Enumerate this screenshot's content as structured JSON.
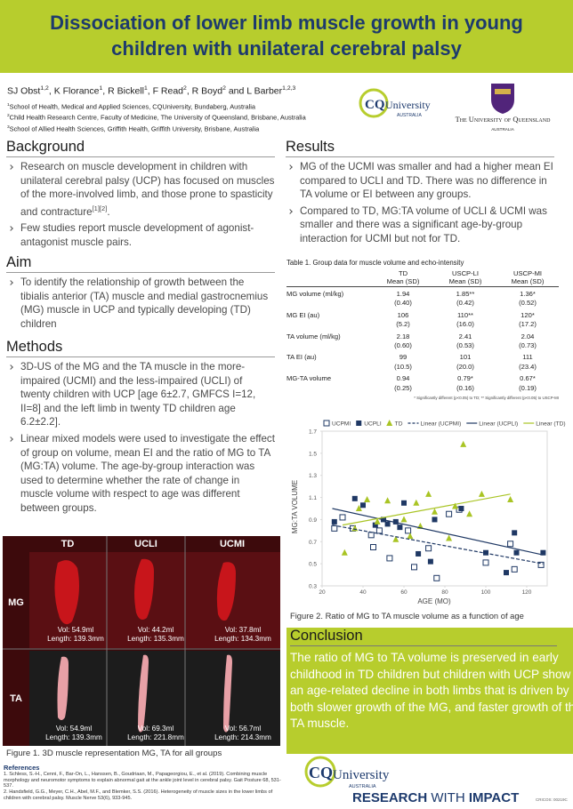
{
  "header": {
    "title": "Dissociation of lower limb muscle growth in young children with unilateral cerebral palsy"
  },
  "authors": [
    {
      "name": "SJ Obst",
      "sup": "1,2"
    },
    {
      "name": "K Florance",
      "sup": "1"
    },
    {
      "name": "R Bickell",
      "sup": "1"
    },
    {
      "name": "F Read",
      "sup": "2"
    },
    {
      "name": "R Boyd",
      "sup": "2"
    },
    {
      "name": "L Barber",
      "sup": "1,2,3"
    }
  ],
  "author_separators": [
    ", ",
    ", ",
    ", ",
    ", ",
    " and "
  ],
  "affiliations": [
    {
      "sup": "1",
      "text": "School of Health, Medical and Applied Sciences, CQUniversity, Bundaberg, Australia"
    },
    {
      "sup": "2",
      "text": "Child Health Research Centre, Faculty of Medicine, The University of Queensland, Brisbane, Australia"
    },
    {
      "sup": "3",
      "text": "School of Allied Health Sciences, Griffith Health, Griffith University, Brisbane, Australia"
    }
  ],
  "logos": {
    "cq": {
      "mark": "CQ",
      "name": "University",
      "country": "AUSTRALIA"
    },
    "uq": {
      "name": "The University of Queensland",
      "country": "AUSTRALIA"
    }
  },
  "background": {
    "heading": "Background",
    "bullets": [
      {
        "text": "Research on muscle development in children with unilateral cerebral palsy (UCP) has focused on muscles of the more-involved limb, and those prone to spasticity and contracture",
        "sup": "[1][2]",
        "end": "."
      },
      {
        "text": "Few studies report muscle development of agonist-antagonist muscle pairs."
      }
    ]
  },
  "aim": {
    "heading": "Aim",
    "bullets": [
      "To identify the relationship of growth between the tibialis anterior (TA) muscle and medial gastrocnemius (MG) muscle in UCP and typically developing (TD) children"
    ]
  },
  "methods": {
    "heading": "Methods",
    "bullets": [
      "3D-US of the MG and the TA muscle in the more-impaired (UCMI) and the less-impaired (UCLI) of twenty children with UCP [age 6±2.7, GMFCS I=12, II=8] and the left limb in twenty TD children age 6.2±2.2].",
      "Linear mixed models were used to investigate the effect of group on volume, mean EI and the ratio of MG to TA (MG:TA) volume. The age-by-group interaction was used to determine whether the rate of change in muscle volume with respect to age was different between groups."
    ]
  },
  "figure1": {
    "columns": [
      "TD",
      "UCLI",
      "UCMI"
    ],
    "rows": [
      {
        "label": "MG",
        "cells": [
          [
            "Vol: 54.9ml",
            "Length: 139.3mm"
          ],
          [
            "Vol: 44.2ml",
            "Length: 135.3mm"
          ],
          [
            "Vol: 37.8ml",
            "Length: 134.3mm"
          ]
        ]
      },
      {
        "label": "TA",
        "cells": [
          [
            "Vol: 54.9ml",
            "Length: 139.3mm"
          ],
          [
            "Vol: 69.3ml",
            "Length: 221.8mm"
          ],
          [
            "Vol: 56.7ml",
            "Length: 214.3mm"
          ]
        ]
      }
    ],
    "caption": "Figure 1. 3D muscle representation MG, TA for all groups"
  },
  "references": {
    "heading": "References",
    "items": [
      "1. Schless, S.-H., Cenni, F., Bar-On, L., Hanssen, B., Goudriaan, M., Papageorgiou, E., et al. (2019). Combining muscle morphology and neuromotor symptoms to explain abnormal gait at the ankle joint level in cerebral palsy. Gait Posture 68, 531-537.",
      "2. Handsfield, G.G., Meyer, C.H., Abel, M.F., and Blemker, S.S. (2016). Heterogeneity of muscle sizes in the lower limbs of children with cerebral palsy. Muscle Nerve 53(6), 933-945."
    ]
  },
  "results": {
    "heading": "Results",
    "bullets": [
      "MG of the UCMI was smaller and had a higher mean EI compared to UCLI and TD. There was no difference in TA volume or EI between any groups.",
      "Compared to TD, MG:TA volume of UCLI & UCMI was smaller and there was a significant age-by-group interaction for UCMI but not for TD."
    ]
  },
  "table": {
    "caption": "Table 1. Group data for muscle volume and echo-intensity",
    "columns": [
      [
        "TD",
        "Mean (SD)"
      ],
      [
        "USCP-LI",
        "Mean (SD)"
      ],
      [
        "USCP-MI",
        "Mean (SD)"
      ]
    ],
    "rows": [
      {
        "label": "MG volume (ml/kg)",
        "cells": [
          [
            "1.94",
            "(0.40)"
          ],
          [
            "1.85**",
            "(0.42)"
          ],
          [
            "1.36*",
            "(0.52)"
          ]
        ]
      },
      {
        "label": "MG EI (au)",
        "cells": [
          [
            "106",
            "(5.2)"
          ],
          [
            "110**",
            "(16.0)"
          ],
          [
            "120*",
            "(17.2)"
          ]
        ]
      },
      {
        "label": "TA volume (ml/kg)",
        "cells": [
          [
            "2.18",
            "(0.60)"
          ],
          [
            "2.41",
            "(0.53)"
          ],
          [
            "2.04",
            "(0.73)"
          ]
        ]
      },
      {
        "label": "TA EI (au)",
        "cells": [
          [
            "99",
            "(10.5)"
          ],
          [
            "101",
            "(20.0)"
          ],
          [
            "111",
            "(23.4)"
          ]
        ]
      },
      {
        "label": "MG-TA volume",
        "cells": [
          [
            "0.94",
            "(0.25)"
          ],
          [
            "0.79*",
            "(0.16)"
          ],
          [
            "0.67*",
            "(0.19)"
          ]
        ]
      }
    ],
    "footnote": "* Significantly different (p<0.05) to TD; ** Significantly different (p<0.05) to USCP-MI"
  },
  "chart_data": {
    "type": "scatter",
    "x_label": "AGE (MO)",
    "y_label": "MG:TA VOLUME",
    "xlim": [
      20,
      130
    ],
    "xticks": [
      20,
      40,
      60,
      80,
      100,
      120
    ],
    "ylim": [
      0.3,
      1.7
    ],
    "yticks": [
      0.3,
      0.5,
      0.7,
      0.9,
      1.1,
      1.3,
      1.5,
      1.7
    ],
    "grid": false,
    "legend": "top",
    "series": [
      {
        "name": "UCPMI",
        "color": "#1f3864",
        "marker": "square-open",
        "x": [
          26,
          30,
          35,
          44,
          45,
          48,
          53,
          62,
          65,
          72,
          76,
          82,
          87,
          100,
          112,
          114,
          127
        ],
        "values": [
          0.82,
          0.92,
          0.82,
          0.76,
          0.65,
          0.8,
          0.55,
          0.8,
          0.47,
          0.64,
          0.37,
          0.95,
          0.99,
          0.51,
          0.68,
          0.45,
          0.49
        ]
      },
      {
        "name": "UCPLI",
        "color": "#1f3864",
        "marker": "square",
        "x": [
          26,
          36,
          40,
          46,
          50,
          52,
          56,
          58,
          60,
          67,
          73,
          75,
          88,
          100,
          110,
          114,
          115,
          128
        ],
        "values": [
          0.88,
          1.09,
          1.03,
          0.85,
          0.9,
          0.86,
          0.88,
          0.83,
          1.05,
          0.59,
          0.52,
          0.9,
          1.0,
          0.6,
          0.42,
          0.78,
          0.6,
          0.6
        ]
      },
      {
        "name": "TD",
        "color": "#a9c424",
        "marker": "triangle",
        "x": [
          31,
          36,
          38,
          42,
          47,
          52,
          56,
          60,
          63,
          66,
          68,
          72,
          75,
          82,
          85,
          89,
          92,
          98,
          112
        ],
        "values": [
          0.6,
          0.82,
          1.0,
          1.08,
          0.88,
          1.07,
          0.72,
          0.9,
          0.75,
          1.05,
          0.84,
          1.13,
          0.97,
          0.73,
          1.02,
          1.58,
          0.95,
          1.13,
          1.08
        ]
      },
      {
        "name": "Linear (UCPMI)",
        "color": "#1f3864",
        "marker": "dashed-line",
        "x": [
          25,
          128
        ],
        "values": [
          0.85,
          0.5
        ]
      },
      {
        "name": "Linear (UCPLI)",
        "color": "#1f3864",
        "marker": "line",
        "x": [
          25,
          128
        ],
        "values": [
          1.0,
          0.58
        ]
      },
      {
        "name": "Linear (TD)",
        "color": "#a9c424",
        "marker": "line",
        "x": [
          30,
          112
        ],
        "values": [
          0.85,
          1.13
        ]
      }
    ]
  },
  "figure2_caption": "Figure 2. Ratio of MG to TA muscle volume as a function of age",
  "conclusion": {
    "heading": "Conclusion",
    "text": "The ratio of MG to TA volume is preserved in early childhood in TD children but children with UCP show an age-related decline in both limbs that is driven by both slower growth of the MG, and faster growth of the TA muscle."
  },
  "footer": {
    "cq_mark": "CQ",
    "cq_name": "University",
    "cq_country": "AUSTRALIA",
    "tagline": [
      "RESEARCH",
      "WITH",
      "IMPACT"
    ],
    "code": "CRICOS: 00219C"
  }
}
